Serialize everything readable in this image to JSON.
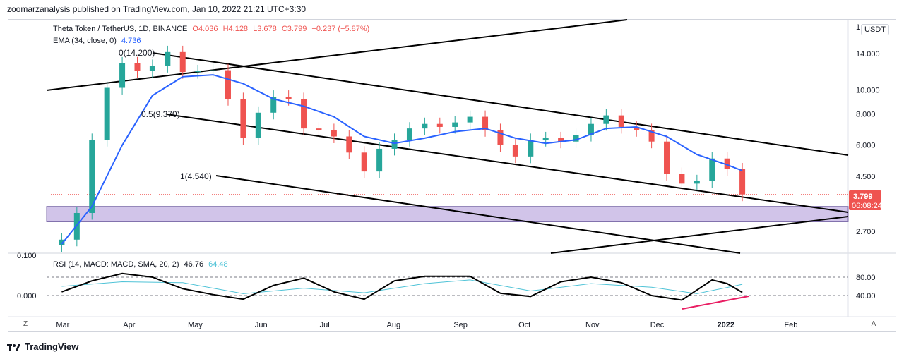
{
  "caption": "zoomarzanalysis published on TradingView.com, Jan 10, 2022 21:21 UTC+3:30",
  "symbol_line": {
    "name": "Theta Token / TetherUS, 1D, BINANCE",
    "open": "O4.036",
    "high": "H4.128",
    "low": "L3.678",
    "close": "C3.799",
    "change": "−0.237 (−5.87%)"
  },
  "ema_line": {
    "label": "EMA (34, close, 0)",
    "value": "4.736"
  },
  "rsi_line": {
    "label": "RSI (14, MACD: MACD, SMA, 20, 2)",
    "value1": "46.76",
    "value2": "64.48"
  },
  "currency_button": "USDT",
  "price_badge": {
    "price": "3.799",
    "countdown": "06:08:24"
  },
  "fib_labels": {
    "f0": "0(14.200)",
    "f05": "0.5(9.370)",
    "f1": "1(4.540)"
  },
  "bottom_left_button": "Z",
  "bottom_right_button": "A",
  "footer_logo": "TradingView",
  "colors": {
    "up": "#26a69a",
    "down": "#ef5350",
    "ema": "#2962ff",
    "rsi": "#000000",
    "rsi_ma": "#4fc3d7",
    "zone": "#d1c4e9",
    "divergence": "#e91e63"
  },
  "chart_data": {
    "type": "line",
    "price_scale": "log",
    "y_ticks": [
      "14.000",
      "10.000",
      "8.000",
      "6.000",
      "4.500",
      "2.700"
    ],
    "y_tick_partial": "1",
    "x_ticks": [
      "Mar",
      "Apr",
      "May",
      "Jun",
      "Jul",
      "Aug",
      "Sep",
      "Oct",
      "Nov",
      "Dec",
      "2022",
      "Feb"
    ],
    "rsi_y_ticks": [
      "80.00",
      "40.00"
    ],
    "macd_y_ticks": [
      "0.100",
      "0.000"
    ],
    "price_series": [
      {
        "date": "2021-03-01",
        "close": 2.5
      },
      {
        "date": "2021-03-08",
        "close": 3.2
      },
      {
        "date": "2021-03-15",
        "close": 6.3
      },
      {
        "date": "2021-03-22",
        "close": 10.2
      },
      {
        "date": "2021-03-29",
        "close": 12.8
      },
      {
        "date": "2021-04-05",
        "close": 11.9
      },
      {
        "date": "2021-04-12",
        "close": 12.5
      },
      {
        "date": "2021-04-19",
        "close": 14.2
      },
      {
        "date": "2021-04-26",
        "close": 11.8
      },
      {
        "date": "2021-05-03",
        "close": 11.9
      },
      {
        "date": "2021-05-10",
        "close": 12.0
      },
      {
        "date": "2021-05-17",
        "close": 9.2
      },
      {
        "date": "2021-05-24",
        "close": 6.4
      },
      {
        "date": "2021-05-31",
        "close": 8.1
      },
      {
        "date": "2021-06-07",
        "close": 9.4
      },
      {
        "date": "2021-06-14",
        "close": 9.2
      },
      {
        "date": "2021-06-21",
        "close": 7.0
      },
      {
        "date": "2021-06-28",
        "close": 6.9
      },
      {
        "date": "2021-07-05",
        "close": 6.5
      },
      {
        "date": "2021-07-12",
        "close": 5.6
      },
      {
        "date": "2021-07-19",
        "close": 4.7
      },
      {
        "date": "2021-07-26",
        "close": 5.8
      },
      {
        "date": "2021-08-02",
        "close": 6.3
      },
      {
        "date": "2021-08-09",
        "close": 7.0
      },
      {
        "date": "2021-08-16",
        "close": 7.3
      },
      {
        "date": "2021-08-23",
        "close": 7.1
      },
      {
        "date": "2021-08-30",
        "close": 7.4
      },
      {
        "date": "2021-09-06",
        "close": 7.8
      },
      {
        "date": "2021-09-13",
        "close": 6.9
      },
      {
        "date": "2021-09-20",
        "close": 6.0
      },
      {
        "date": "2021-09-27",
        "close": 5.4
      },
      {
        "date": "2021-10-04",
        "close": 6.3
      },
      {
        "date": "2021-10-11",
        "close": 6.4
      },
      {
        "date": "2021-10-18",
        "close": 6.2
      },
      {
        "date": "2021-10-25",
        "close": 6.6
      },
      {
        "date": "2021-11-01",
        "close": 7.3
      },
      {
        "date": "2021-11-08",
        "close": 7.9
      },
      {
        "date": "2021-11-15",
        "close": 7.1
      },
      {
        "date": "2021-11-22",
        "close": 6.9
      },
      {
        "date": "2021-11-29",
        "close": 6.2
      },
      {
        "date": "2021-12-06",
        "close": 4.6
      },
      {
        "date": "2021-12-13",
        "close": 4.2
      },
      {
        "date": "2021-12-20",
        "close": 4.3
      },
      {
        "date": "2021-12-27",
        "close": 5.3
      },
      {
        "date": "2022-01-03",
        "close": 4.8
      },
      {
        "date": "2022-01-10",
        "close": 3.799
      }
    ],
    "ema_series": [
      {
        "date": "2021-03-01",
        "value": 2.4
      },
      {
        "date": "2021-03-15",
        "value": 3.4
      },
      {
        "date": "2021-03-29",
        "value": 6.0
      },
      {
        "date": "2021-04-12",
        "value": 9.5
      },
      {
        "date": "2021-04-26",
        "value": 11.3
      },
      {
        "date": "2021-05-10",
        "value": 11.5
      },
      {
        "date": "2021-05-24",
        "value": 10.6
      },
      {
        "date": "2021-06-07",
        "value": 9.2
      },
      {
        "date": "2021-06-21",
        "value": 8.6
      },
      {
        "date": "2021-07-05",
        "value": 7.8
      },
      {
        "date": "2021-07-19",
        "value": 6.5
      },
      {
        "date": "2021-08-02",
        "value": 6.1
      },
      {
        "date": "2021-08-16",
        "value": 6.4
      },
      {
        "date": "2021-08-30",
        "value": 6.8
      },
      {
        "date": "2021-09-13",
        "value": 7.0
      },
      {
        "date": "2021-09-27",
        "value": 6.4
      },
      {
        "date": "2021-10-11",
        "value": 6.1
      },
      {
        "date": "2021-10-25",
        "value": 6.3
      },
      {
        "date": "2021-11-08",
        "value": 7.0
      },
      {
        "date": "2021-11-22",
        "value": 7.1
      },
      {
        "date": "2021-12-06",
        "value": 6.5
      },
      {
        "date": "2021-12-20",
        "value": 5.5
      },
      {
        "date": "2022-01-03",
        "value": 5.0
      },
      {
        "date": "2022-01-10",
        "value": 4.736
      }
    ],
    "support_zone": {
      "from": 2.95,
      "to": 3.4
    },
    "rsi_series": [
      {
        "date": "2021-03-01",
        "value": 48
      },
      {
        "date": "2021-03-15",
        "value": 72
      },
      {
        "date": "2021-03-29",
        "value": 88
      },
      {
        "date": "2021-04-12",
        "value": 80
      },
      {
        "date": "2021-04-26",
        "value": 55
      },
      {
        "date": "2021-05-10",
        "value": 42
      },
      {
        "date": "2021-05-24",
        "value": 32
      },
      {
        "date": "2021-06-07",
        "value": 62
      },
      {
        "date": "2021-06-21",
        "value": 78
      },
      {
        "date": "2021-07-05",
        "value": 48
      },
      {
        "date": "2021-07-19",
        "value": 32
      },
      {
        "date": "2021-08-02",
        "value": 72
      },
      {
        "date": "2021-08-16",
        "value": 82
      },
      {
        "date": "2021-09-06",
        "value": 82
      },
      {
        "date": "2021-09-20",
        "value": 45
      },
      {
        "date": "2021-10-04",
        "value": 38
      },
      {
        "date": "2021-10-18",
        "value": 70
      },
      {
        "date": "2021-11-01",
        "value": 80
      },
      {
        "date": "2021-11-15",
        "value": 68
      },
      {
        "date": "2021-11-29",
        "value": 40
      },
      {
        "date": "2021-12-13",
        "value": 30
      },
      {
        "date": "2021-12-27",
        "value": 74
      },
      {
        "date": "2022-01-03",
        "value": 66
      },
      {
        "date": "2022-01-10",
        "value": 46.76
      }
    ],
    "rsi_ma_series": [
      {
        "date": "2021-03-01",
        "value": 60
      },
      {
        "date": "2021-03-29",
        "value": 70
      },
      {
        "date": "2021-04-26",
        "value": 68
      },
      {
        "date": "2021-05-24",
        "value": 44
      },
      {
        "date": "2021-06-21",
        "value": 56
      },
      {
        "date": "2021-07-19",
        "value": 46
      },
      {
        "date": "2021-08-16",
        "value": 66
      },
      {
        "date": "2021-09-06",
        "value": 74
      },
      {
        "date": "2021-10-04",
        "value": 50
      },
      {
        "date": "2021-11-01",
        "value": 66
      },
      {
        "date": "2021-11-29",
        "value": 58
      },
      {
        "date": "2021-12-20",
        "value": 44
      },
      {
        "date": "2022-01-10",
        "value": 64.48
      }
    ]
  }
}
